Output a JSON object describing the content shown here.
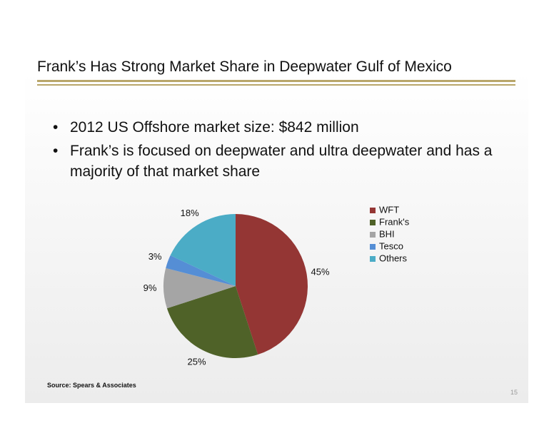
{
  "title": "Frank’s Has Strong Market Share in Deepwater Gulf of Mexico",
  "bullets": [
    "2012 US Offshore market size: $842 million",
    "Frank’s is focused on deepwater and ultra deepwater and has a majority of that market share"
  ],
  "chart_data": {
    "type": "pie",
    "categories": [
      "WFT",
      "Frank's",
      "BHI",
      "Tesco",
      "Others"
    ],
    "values": [
      45,
      25,
      9,
      3,
      18
    ],
    "value_labels": [
      "45%",
      "25%",
      "9%",
      "3%",
      "18%"
    ],
    "colors": [
      "#943634",
      "#4f6228",
      "#a5a5a5",
      "#558ed5",
      "#4bacc6"
    ],
    "legend": "right"
  },
  "source": "Source: Spears & Associates",
  "page_number": 15
}
